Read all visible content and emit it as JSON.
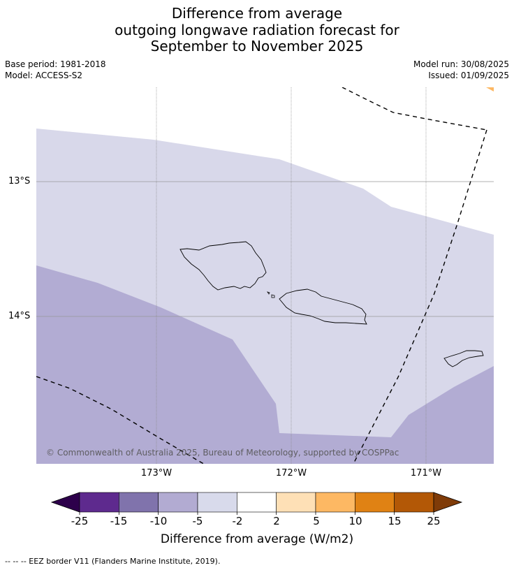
{
  "title": {
    "line1": "Difference from average",
    "line2": "outgoing longwave radiation forecast for",
    "line3": "September to November 2025"
  },
  "meta": {
    "base_period": "Base period: 1981-2018",
    "model": "Model: ACCESS-S2",
    "model_run": "Model run: 30/08/2025",
    "issued": "Issued: 01/09/2025"
  },
  "map": {
    "lat_labels": [
      "13°S",
      "14°S"
    ],
    "lon_labels": [
      "173°W",
      "172°W",
      "171°W"
    ],
    "copyright": "© Commonwealth of Australia 2025, Bureau of Meteorology, supported by COSPPac",
    "colors": {
      "band_-5_-2": "#d8d8ea",
      "band_-10_-5": "#b2acd3",
      "band_5_10": "#fdb863",
      "grid": "#999999"
    }
  },
  "colorbar": {
    "ticks": [
      "-25",
      "-15",
      "-10",
      "-5",
      "-2",
      "2",
      "5",
      "10",
      "15",
      "25"
    ],
    "colors": [
      "#5e2a8e",
      "#8073ac",
      "#b2abd2",
      "#d8daeb",
      "#ffffff",
      "#fee0b6",
      "#fdb863",
      "#e08214",
      "#b35806"
    ],
    "under_color": "#2d004b",
    "over_color": "#7f3b08",
    "label": "Difference from average (W/m2)"
  },
  "footnote": "--  --  -- EEZ border V11 (Flanders Marine Institute, 2019)."
}
